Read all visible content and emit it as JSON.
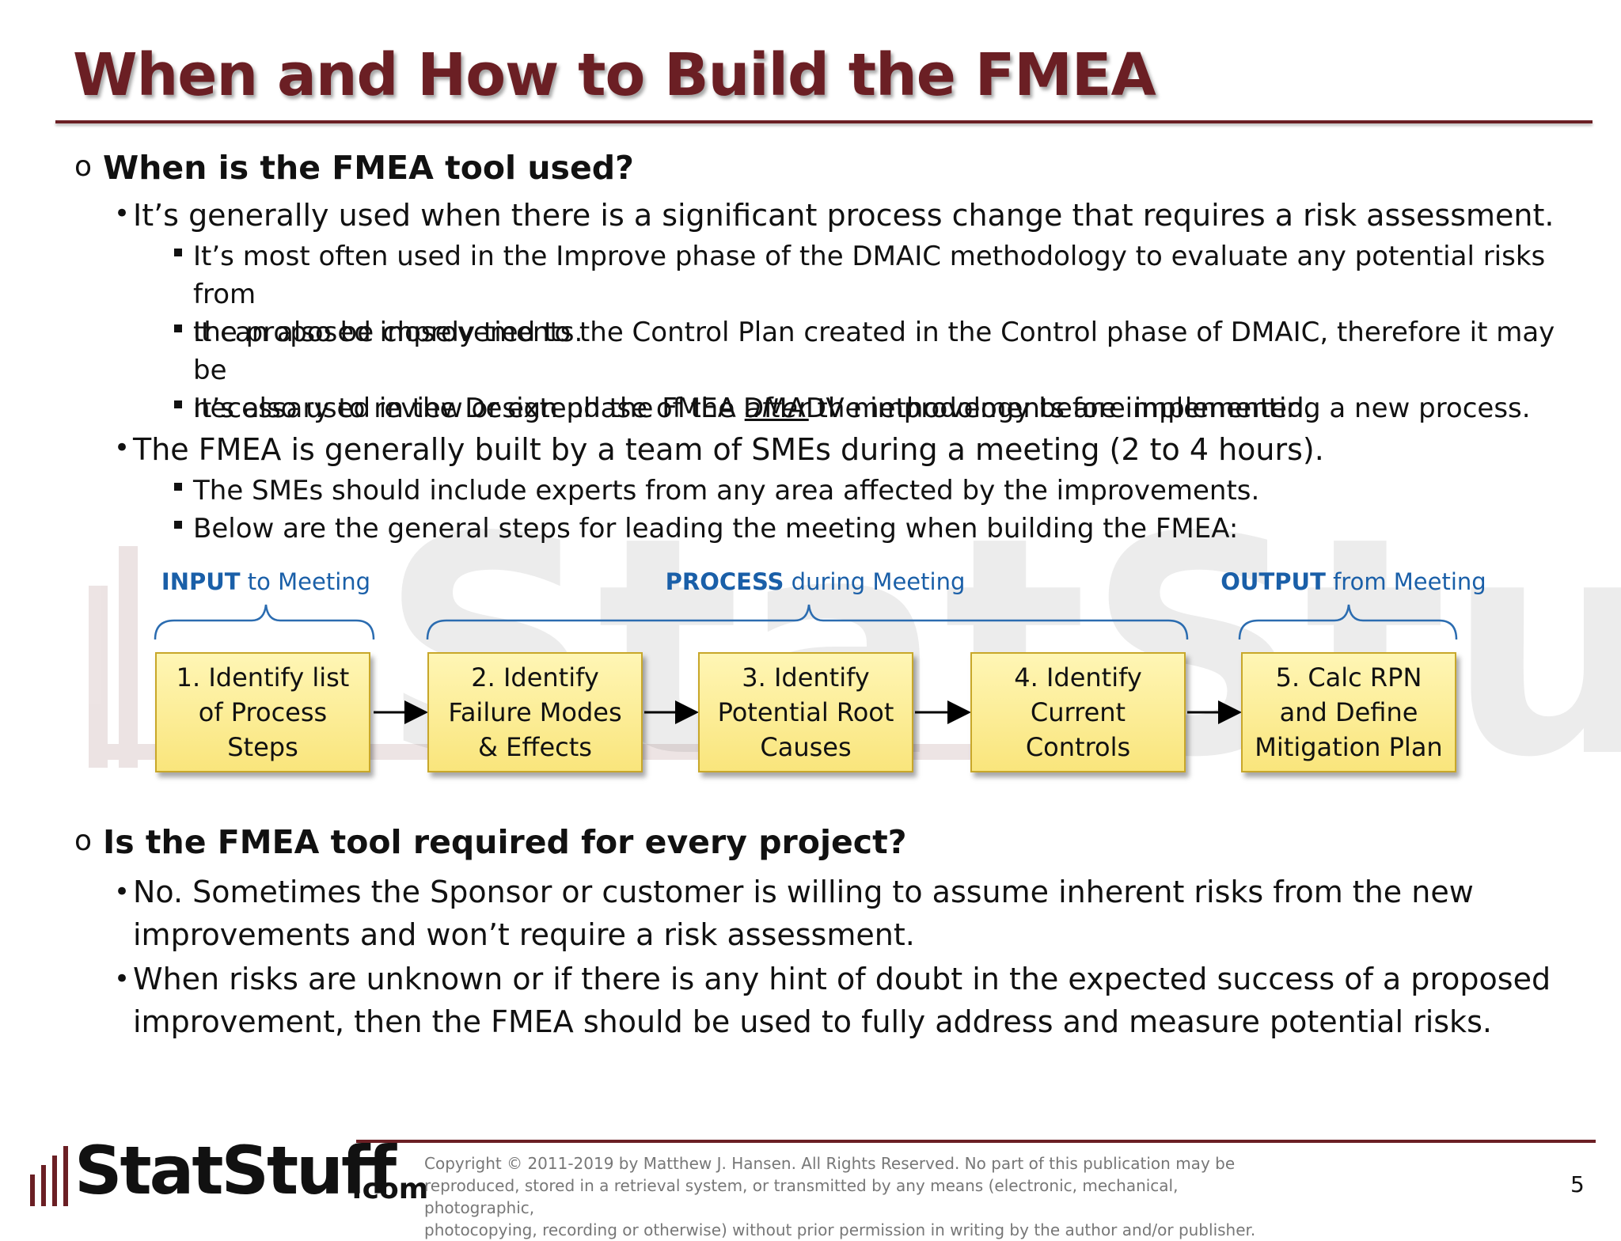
{
  "title": "When and How to Build the FMEA",
  "section1": {
    "heading": "When is the FMEA tool used?",
    "bullet1": "It’s generally used when there is a significant process change that requires a risk assessment.",
    "sub1_line1": "It’s most often used in the Improve phase of the DMAIC methodology to evaluate any potential risks from",
    "sub1_line2": "the proposed improvements.",
    "sub2_line1": "It can also be closely tied to the Control Plan created in the Control phase of DMAIC, therefore it may be",
    "sub2_line2_pre": "necessary to review or extend the FMEA ",
    "sub2_line2_em": "after",
    "sub2_line2_post": " the improvements are implemented.",
    "sub3": "It’s also used in the Design phase of the DMADV methodology before implementing a new process.",
    "bullet2": "The FMEA is generally built by a team of SMEs during a meeting (2 to 4 hours).",
    "sub4": "The SMEs should include experts from any area affected by the improvements.",
    "sub5": "Below are the general steps for leading the meeting when building the FMEA:"
  },
  "diagram": {
    "input": {
      "strong": "INPUT",
      "rest": " to Meeting"
    },
    "process": {
      "strong": "PROCESS",
      "rest": " during Meeting"
    },
    "output": {
      "strong": "OUTPUT",
      "rest": " from Meeting"
    },
    "steps": [
      {
        "l1": "1. Identify list",
        "l2": "of Process",
        "l3": "Steps"
      },
      {
        "l1": "2. Identify",
        "l2": "Failure Modes",
        "l3": "& Effects"
      },
      {
        "l1": "3. Identify",
        "l2": "Potential Root",
        "l3": "Causes"
      },
      {
        "l1": "4. Identify",
        "l2": "Current",
        "l3": "Controls"
      },
      {
        "l1": "5. Calc RPN",
        "l2": "and Define",
        "l3": "Mitigation Plan"
      }
    ]
  },
  "section2": {
    "heading": "Is the FMEA tool required for every project?",
    "b1_line1": "No.  Sometimes the Sponsor or customer is willing to assume inherent risks from the new",
    "b1_line2": "improvements and won’t require a risk assessment.",
    "b2_line1": "When risks are unknown or if there is any hint of doubt in the expected success of a proposed",
    "b2_line2": "improvement, then the FMEA should be used to fully address and measure potential risks."
  },
  "footer": {
    "logo_text": "StatStuff",
    "logo_suffix": ".com",
    "copyright_l1": "Copyright © 2011-2019 by Matthew  J. Hansen.  All Rights Reserved.  No part of this publication may be",
    "copyright_l2": "reproduced, stored in a retrieval system, or transmitted by any means  (electronic, mechanical, photographic,",
    "copyright_l3": "photocopying, recording or otherwise) without prior permission in writing by the author and/or publisher.",
    "page_number": "5"
  },
  "colors": {
    "title": "#6b1f24",
    "phase_blue": "#1a5fa8",
    "step_fill": "#f9e57c",
    "step_border": "#c8a72a"
  }
}
